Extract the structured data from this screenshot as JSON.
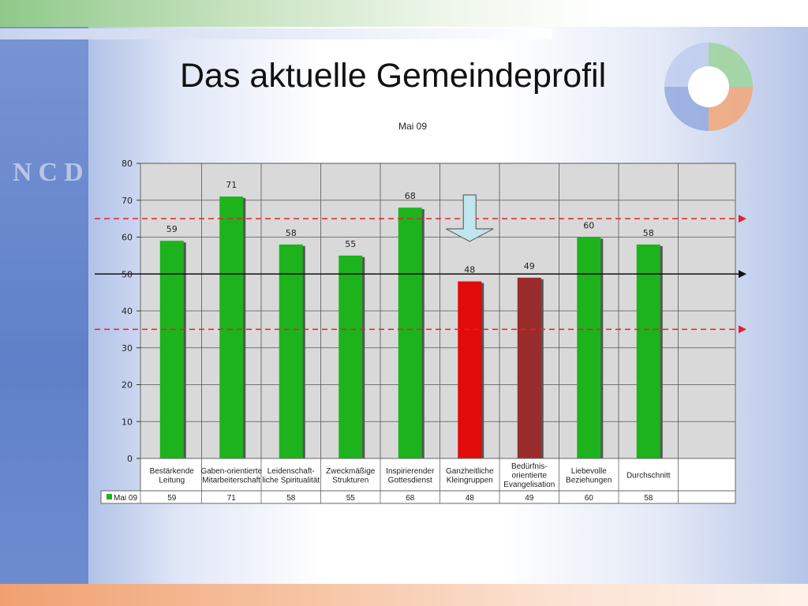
{
  "slide": {
    "title": "Das aktuelle Gemeindeprofil",
    "brand": "NCD"
  },
  "colors": {
    "bar_green": "#1db31d",
    "bar_red": "#e00b0b",
    "bar_darkred": "#9a2b2b",
    "plot_bg": "#d9d9d9",
    "ref_line": "#e8202a",
    "arrow_fill": "#bfe6ee"
  },
  "chart_data": {
    "type": "bar",
    "title": "Mai 09",
    "categories": [
      [
        "Bestärkende",
        "Leitung"
      ],
      [
        "Gaben-orientierte",
        "Mitarbeiterschaft"
      ],
      [
        "Leidenschaft-",
        "liche Spiritualität"
      ],
      [
        "Zweckmäßige",
        "Strukturen"
      ],
      [
        "Inspirierender",
        "Gottesdienst"
      ],
      [
        "Ganzheitliche",
        "Kleingruppen"
      ],
      [
        "Bedürfnis-",
        "orientierte",
        "Evangelisation"
      ],
      [
        "Liebevolle",
        "Beziehungen"
      ],
      [
        "Durchschnitt"
      ]
    ],
    "series": [
      {
        "name": "Mai 09",
        "values": [
          59,
          71,
          58,
          55,
          68,
          48,
          49,
          60,
          58
        ]
      }
    ],
    "highlight": {
      "red": 5,
      "darkred": 6
    },
    "ylim": [
      0,
      80
    ],
    "yticks": [
      0,
      10,
      20,
      30,
      40,
      50,
      60,
      70,
      80
    ],
    "reference_lines": [
      65,
      50,
      35
    ],
    "marked_category": 5,
    "grid": true,
    "data_table": true
  }
}
